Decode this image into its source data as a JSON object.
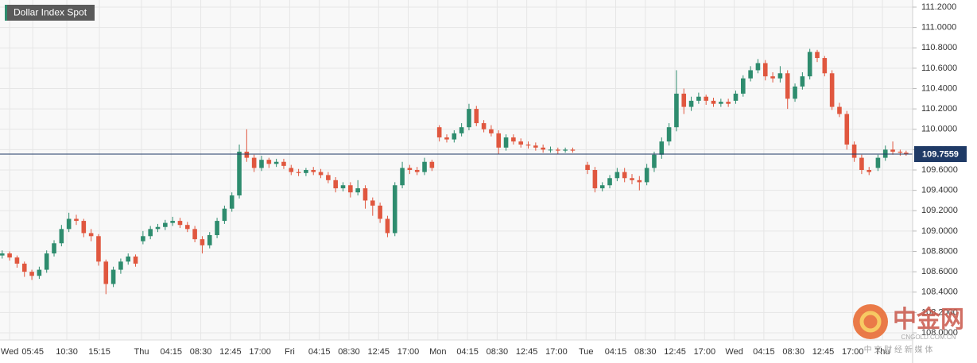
{
  "chart_data": {
    "type": "candlestick",
    "title": "Dollar Index Spot",
    "last_price": 109.7559,
    "watermark": {
      "brand": "中金网",
      "site": "CNGOLD.COM.CN",
      "tagline": "中 文 财 经 新 媒 体"
    },
    "up_color": "#2e8c6e",
    "down_color": "#e0573f",
    "last_color": "#1f3a66",
    "grid": true,
    "xlim": [
      0,
      31
    ],
    "xticks": [
      {
        "value": 0.55,
        "label": "Wed"
      },
      {
        "value": 1.33,
        "label": "05:45"
      },
      {
        "value": 2.48,
        "label": "10:30"
      },
      {
        "value": 3.58,
        "label": "15:15"
      },
      {
        "value": 5,
        "label": "Thu"
      },
      {
        "value": 6,
        "label": "04:15"
      },
      {
        "value": 7,
        "label": "08:30"
      },
      {
        "value": 8,
        "label": "12:45"
      },
      {
        "value": 9,
        "label": "17:00"
      },
      {
        "value": 10,
        "label": "Fri"
      },
      {
        "value": 11,
        "label": "04:15"
      },
      {
        "value": 12,
        "label": "08:30"
      },
      {
        "value": 13,
        "label": "12:45"
      },
      {
        "value": 14,
        "label": "17:00"
      },
      {
        "value": 15,
        "label": "Mon"
      },
      {
        "value": 16,
        "label": "04:15"
      },
      {
        "value": 17,
        "label": "08:30"
      },
      {
        "value": 18,
        "label": "12:45"
      },
      {
        "value": 19,
        "label": "17:00"
      },
      {
        "value": 20,
        "label": "Tue"
      },
      {
        "value": 21,
        "label": "04:15"
      },
      {
        "value": 22,
        "label": "08:30"
      },
      {
        "value": 23,
        "label": "12:45"
      },
      {
        "value": 24,
        "label": "17:00"
      },
      {
        "value": 25,
        "label": "Wed"
      },
      {
        "value": 26,
        "label": "04:15"
      },
      {
        "value": 27,
        "label": "08:30"
      },
      {
        "value": 28,
        "label": "12:45"
      },
      {
        "value": 29,
        "label": "17:00"
      },
      {
        "value": 30,
        "label": "Thu"
      }
    ],
    "ylim": [
      107.93,
      111.27
    ],
    "yticks": [
      {
        "value": 108.0,
        "label": "108.0000"
      },
      {
        "value": 108.2,
        "label": "108.2000"
      },
      {
        "value": 108.4,
        "label": "108.4000"
      },
      {
        "value": 108.6,
        "label": "108.6000"
      },
      {
        "value": 108.8,
        "label": "108.8000"
      },
      {
        "value": 109.0,
        "label": "109.0000"
      },
      {
        "value": 109.2,
        "label": "109.2000"
      },
      {
        "value": 109.4,
        "label": "109.4000"
      },
      {
        "value": 109.6,
        "label": "109.6000"
      },
      {
        "value": 109.8,
        "label": "109.8000"
      },
      {
        "value": 110.0,
        "label": "110.0000"
      },
      {
        "value": 110.2,
        "label": "110.2000"
      },
      {
        "value": 110.4,
        "label": "110.4000"
      },
      {
        "value": 110.6,
        "label": "110.6000"
      },
      {
        "value": 110.8,
        "label": "110.8000"
      },
      {
        "value": 111.0,
        "label": "111.0000"
      },
      {
        "value": 111.2,
        "label": "111.2000"
      }
    ],
    "x": [
      0.3,
      0.55,
      0.8,
      1.05,
      1.3,
      1.55,
      1.8,
      2.05,
      2.3,
      2.55,
      2.8,
      3.05,
      3.3,
      3.55,
      3.8,
      4.05,
      4.3,
      4.55,
      4.8,
      5.05,
      5.3,
      5.55,
      5.8,
      6.05,
      6.3,
      6.55,
      6.8,
      7.05,
      7.3,
      7.55,
      7.8,
      8.05,
      8.3,
      8.55,
      8.8,
      9.05,
      9.3,
      9.55,
      9.8,
      10.05,
      10.3,
      10.55,
      10.8,
      11.05,
      11.3,
      11.55,
      11.8,
      12.05,
      12.3,
      12.55,
      12.8,
      13.05,
      13.3,
      13.55,
      13.8,
      14.05,
      14.3,
      14.55,
      14.8,
      15.05,
      15.3,
      15.55,
      15.8,
      16.05,
      16.3,
      16.55,
      16.8,
      17.05,
      17.3,
      17.55,
      17.8,
      18.05,
      18.3,
      18.55,
      18.8,
      19.05,
      19.3,
      19.55,
      20.05,
      20.3,
      20.55,
      20.8,
      21.05,
      21.3,
      21.55,
      21.8,
      22.05,
      22.3,
      22.55,
      22.8,
      23.05,
      23.3,
      23.55,
      23.8,
      24.05,
      24.3,
      24.55,
      24.8,
      25.05,
      25.3,
      25.55,
      25.8,
      26.05,
      26.3,
      26.55,
      26.8,
      27.05,
      27.3,
      27.55,
      27.8,
      28.05,
      28.3,
      28.55,
      28.8,
      29.05,
      29.3,
      29.55,
      29.85,
      30.1,
      30.35,
      30.6,
      30.8
    ],
    "open": [
      108.76,
      108.78,
      108.74,
      108.68,
      108.6,
      108.56,
      108.62,
      108.78,
      108.88,
      109.02,
      109.12,
      109.1,
      108.98,
      108.95,
      108.7,
      108.48,
      108.62,
      108.7,
      108.75,
      108.9,
      108.95,
      109.02,
      109.04,
      109.08,
      109.1,
      109.06,
      109.02,
      108.92,
      108.86,
      108.96,
      109.1,
      109.22,
      109.35,
      109.78,
      109.72,
      109.62,
      109.7,
      109.66,
      109.68,
      109.62,
      109.58,
      109.57,
      109.6,
      109.58,
      109.55,
      109.5,
      109.42,
      109.45,
      109.38,
      109.42,
      109.3,
      109.25,
      109.12,
      108.98,
      109.45,
      109.62,
      109.6,
      109.58,
      109.68,
      110.02,
      109.92,
      109.9,
      109.96,
      110.02,
      110.2,
      110.06,
      110.0,
      109.96,
      109.82,
      109.92,
      109.88,
      109.85,
      109.84,
      109.82,
      109.8,
      109.8,
      109.79,
      109.8,
      109.65,
      109.6,
      109.42,
      109.45,
      109.52,
      109.58,
      109.52,
      109.5,
      109.48,
      109.62,
      109.75,
      109.88,
      110.02,
      110.35,
      110.22,
      110.28,
      110.32,
      110.28,
      110.25,
      110.27,
      110.28,
      110.35,
      110.5,
      110.58,
      110.65,
      110.52,
      110.5,
      110.55,
      110.3,
      110.42,
      110.52,
      110.76,
      110.7,
      110.55,
      110.22,
      110.15,
      109.85,
      109.72,
      109.6,
      109.62,
      109.72,
      109.8,
      109.78,
      109.77
    ],
    "high": [
      108.81,
      108.8,
      108.76,
      108.7,
      108.62,
      108.65,
      108.81,
      108.91,
      109.06,
      109.18,
      109.16,
      109.12,
      109.02,
      108.97,
      108.72,
      108.65,
      108.73,
      108.78,
      108.77,
      109.0,
      109.05,
      109.07,
      109.11,
      109.14,
      109.13,
      109.09,
      109.05,
      108.95,
      108.99,
      109.13,
      109.25,
      109.38,
      109.85,
      110.0,
      109.75,
      109.74,
      109.72,
      109.71,
      109.71,
      109.65,
      109.61,
      109.62,
      109.63,
      109.61,
      109.58,
      109.53,
      109.48,
      109.48,
      109.5,
      109.45,
      109.33,
      109.28,
      109.15,
      109.48,
      109.68,
      109.65,
      109.63,
      109.72,
      109.7,
      110.04,
      109.95,
      109.99,
      110.06,
      110.25,
      110.23,
      110.09,
      110.04,
      109.99,
      109.95,
      109.95,
      109.91,
      109.88,
      109.87,
      109.85,
      109.83,
      109.82,
      109.82,
      109.82,
      109.68,
      109.63,
      109.48,
      109.55,
      109.62,
      109.62,
      109.56,
      109.54,
      109.66,
      109.78,
      109.92,
      110.06,
      110.58,
      110.4,
      110.32,
      110.36,
      110.34,
      110.31,
      110.3,
      110.3,
      110.38,
      110.53,
      110.62,
      110.69,
      110.68,
      110.56,
      110.62,
      110.58,
      110.45,
      110.56,
      110.79,
      110.78,
      110.72,
      110.58,
      110.26,
      110.18,
      109.88,
      109.75,
      109.63,
      109.75,
      109.84,
      109.88,
      109.8,
      109.79
    ],
    "low": [
      108.73,
      108.71,
      108.64,
      108.55,
      108.52,
      108.53,
      108.59,
      108.75,
      108.85,
      108.99,
      109.06,
      108.94,
      108.9,
      108.66,
      108.38,
      108.45,
      108.58,
      108.67,
      108.65,
      108.87,
      108.92,
      108.99,
      109.01,
      109.05,
      109.03,
      108.99,
      108.89,
      108.78,
      108.83,
      108.93,
      109.07,
      109.19,
      109.32,
      109.68,
      109.58,
      109.59,
      109.62,
      109.63,
      109.61,
      109.55,
      109.54,
      109.54,
      109.55,
      109.52,
      109.47,
      109.38,
      109.39,
      109.33,
      109.35,
      109.22,
      109.15,
      109.08,
      108.94,
      108.95,
      109.42,
      109.56,
      109.55,
      109.55,
      109.59,
      109.88,
      109.87,
      109.87,
      109.93,
      109.99,
      110.03,
      109.97,
      109.93,
      109.76,
      109.79,
      109.85,
      109.82,
      109.81,
      109.79,
      109.77,
      109.77,
      109.76,
      109.77,
      109.77,
      109.56,
      109.38,
      109.39,
      109.42,
      109.49,
      109.48,
      109.46,
      109.4,
      109.45,
      109.58,
      109.71,
      109.84,
      109.98,
      110.15,
      110.18,
      110.25,
      110.24,
      110.22,
      110.22,
      110.22,
      110.25,
      110.32,
      110.47,
      110.55,
      110.48,
      110.46,
      110.46,
      110.2,
      110.27,
      110.39,
      110.49,
      110.66,
      110.52,
      110.19,
      110.12,
      109.8,
      109.68,
      109.56,
      109.55,
      109.59,
      109.69,
      109.75,
      109.74,
      109.74
    ],
    "close": [
      108.78,
      108.74,
      108.68,
      108.6,
      108.56,
      108.62,
      108.78,
      108.88,
      109.02,
      109.12,
      109.1,
      108.98,
      108.95,
      108.7,
      108.48,
      108.62,
      108.7,
      108.75,
      108.68,
      108.95,
      109.02,
      109.04,
      109.08,
      109.1,
      109.06,
      109.02,
      108.92,
      108.86,
      108.96,
      109.1,
      109.22,
      109.35,
      109.78,
      109.72,
      109.62,
      109.7,
      109.66,
      109.68,
      109.64,
      109.58,
      109.57,
      109.6,
      109.58,
      109.55,
      109.5,
      109.42,
      109.45,
      109.38,
      109.42,
      109.3,
      109.25,
      109.12,
      108.98,
      109.45,
      109.62,
      109.6,
      109.58,
      109.68,
      109.62,
      109.92,
      109.9,
      109.96,
      110.02,
      110.2,
      110.06,
      110.0,
      109.96,
      109.82,
      109.92,
      109.88,
      109.85,
      109.84,
      109.82,
      109.8,
      109.8,
      109.79,
      109.8,
      109.79,
      109.6,
      109.42,
      109.45,
      109.52,
      109.58,
      109.52,
      109.5,
      109.48,
      109.62,
      109.75,
      109.88,
      110.02,
      110.35,
      110.22,
      110.28,
      110.32,
      110.28,
      110.25,
      110.27,
      110.25,
      110.35,
      110.5,
      110.58,
      110.65,
      110.52,
      110.5,
      110.55,
      110.3,
      110.42,
      110.52,
      110.76,
      110.7,
      110.55,
      110.22,
      110.15,
      109.85,
      109.72,
      109.6,
      109.58,
      109.72,
      109.8,
      109.78,
      109.77,
      109.7559
    ]
  }
}
